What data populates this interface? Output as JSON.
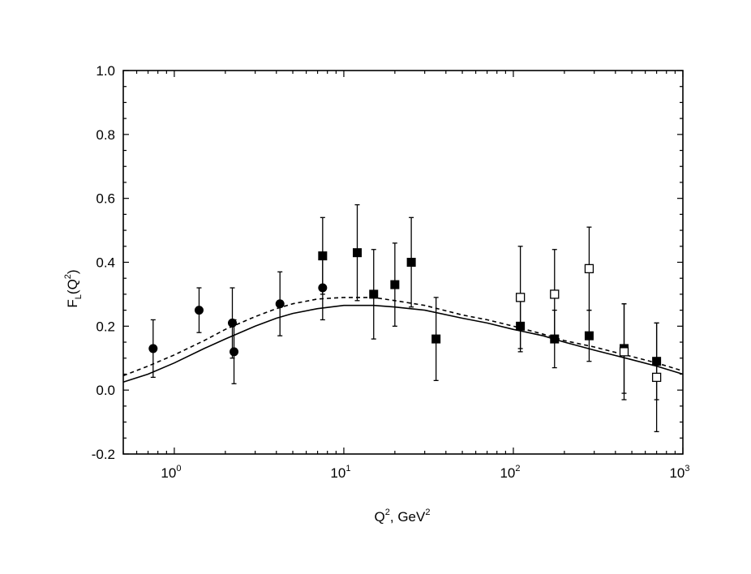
{
  "chart_data": {
    "type": "scatter",
    "x_scale": "log",
    "xlim": [
      0.5,
      1000
    ],
    "ylim": [
      -0.2,
      1.0
    ],
    "xlabel": {
      "base": "Q",
      "sup1": "2",
      "mid": ", GeV",
      "sup2": "2"
    },
    "ylabel": {
      "base": "F",
      "sub": "L",
      "mid": "(Q",
      "sup": "2",
      "end": ")"
    },
    "x_ticks": [
      {
        "value": 1,
        "base": "10",
        "exp": "0"
      },
      {
        "value": 10,
        "base": "10",
        "exp": "1"
      },
      {
        "value": 100,
        "base": "10",
        "exp": "2"
      },
      {
        "value": 1000,
        "base": "10",
        "exp": "3"
      }
    ],
    "y_ticks": [
      {
        "value": -0.2,
        "label": "-0.2"
      },
      {
        "value": 0.0,
        "label": "0.0"
      },
      {
        "value": 0.2,
        "label": "0.2"
      },
      {
        "value": 0.4,
        "label": "0.4"
      },
      {
        "value": 0.6,
        "label": "0.6"
      },
      {
        "value": 0.8,
        "label": "0.8"
      },
      {
        "value": 1.0,
        "label": "1.0"
      }
    ],
    "series": [
      {
        "marker": "filled-circle",
        "points": [
          {
            "x": 0.75,
            "y": 0.13,
            "err": 0.09
          },
          {
            "x": 1.4,
            "y": 0.25,
            "err": 0.07
          },
          {
            "x": 2.2,
            "y": 0.21,
            "err": 0.11
          },
          {
            "x": 2.25,
            "y": 0.12,
            "err": 0.1
          },
          {
            "x": 4.2,
            "y": 0.27,
            "err": 0.1
          },
          {
            "x": 7.5,
            "y": 0.32,
            "err": 0.1
          }
        ]
      },
      {
        "marker": "filled-square",
        "points": [
          {
            "x": 7.5,
            "y": 0.42,
            "err": 0.12
          },
          {
            "x": 12,
            "y": 0.43,
            "err": 0.15
          },
          {
            "x": 15,
            "y": 0.3,
            "err": 0.14
          },
          {
            "x": 20,
            "y": 0.33,
            "err": 0.13
          },
          {
            "x": 25,
            "y": 0.4,
            "err": 0.14
          },
          {
            "x": 35,
            "y": 0.16,
            "err": 0.13
          },
          {
            "x": 110,
            "y": 0.2,
            "err": 0.08
          },
          {
            "x": 175,
            "y": 0.16,
            "err": 0.09
          },
          {
            "x": 280,
            "y": 0.17,
            "err": 0.08
          },
          {
            "x": 450,
            "y": 0.13,
            "err": 0.14
          },
          {
            "x": 700,
            "y": 0.09,
            "err": 0.12
          }
        ]
      },
      {
        "marker": "open-square",
        "points": [
          {
            "x": 110,
            "y": 0.29,
            "err": 0.16
          },
          {
            "x": 175,
            "y": 0.3,
            "err": 0.14
          },
          {
            "x": 280,
            "y": 0.38,
            "err": 0.13
          },
          {
            "x": 450,
            "y": 0.12,
            "err": 0.15
          },
          {
            "x": 700,
            "y": 0.04,
            "err": 0.17
          }
        ]
      }
    ],
    "curves": [
      {
        "style": "solid",
        "x": [
          0.5,
          0.7,
          1,
          1.5,
          2,
          3,
          4,
          5,
          7,
          10,
          15,
          20,
          30,
          50,
          70,
          100,
          150,
          200,
          300,
          500,
          700,
          1000
        ],
        "y": [
          0.025,
          0.05,
          0.085,
          0.13,
          0.16,
          0.2,
          0.225,
          0.24,
          0.255,
          0.265,
          0.265,
          0.26,
          0.25,
          0.225,
          0.21,
          0.19,
          0.17,
          0.15,
          0.125,
          0.095,
          0.075,
          0.05
        ]
      },
      {
        "style": "dashed",
        "x": [
          0.5,
          0.7,
          1,
          1.5,
          2,
          3,
          4,
          5,
          7,
          10,
          15,
          20,
          30,
          50,
          70,
          100,
          150,
          200,
          300,
          500,
          700,
          1000
        ],
        "y": [
          0.045,
          0.075,
          0.11,
          0.155,
          0.19,
          0.23,
          0.255,
          0.27,
          0.285,
          0.29,
          0.29,
          0.28,
          0.265,
          0.235,
          0.22,
          0.2,
          0.175,
          0.155,
          0.135,
          0.105,
          0.085,
          0.06
        ]
      }
    ]
  }
}
